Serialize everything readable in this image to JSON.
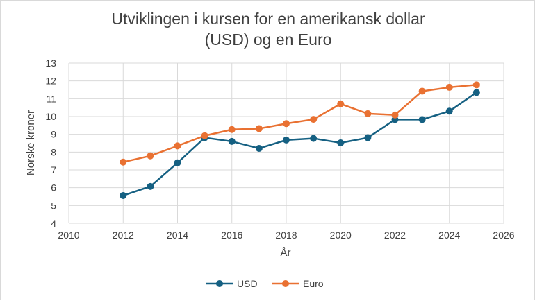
{
  "chart_data": {
    "type": "line",
    "title_lines": [
      "Utviklingen i kursen for en amerikansk dollar",
      "(USD) og en Euro"
    ],
    "xlabel": "År",
    "ylabel": "Norske kroner",
    "xlim": [
      2010,
      2026
    ],
    "ylim": [
      4,
      13
    ],
    "xticks": [
      2010,
      2012,
      2014,
      2016,
      2018,
      2020,
      2022,
      2024,
      2026
    ],
    "yticks": [
      4,
      5,
      6,
      7,
      8,
      9,
      10,
      11,
      12,
      13
    ],
    "grid": true,
    "legend_position": "bottom",
    "x": [
      2012,
      2013,
      2014,
      2015,
      2016,
      2017,
      2018,
      2019,
      2020,
      2021,
      2022,
      2023,
      2024,
      2025
    ],
    "series": [
      {
        "name": "USD",
        "color": "#156082",
        "values": [
          5.56,
          6.07,
          7.4,
          8.81,
          8.6,
          8.21,
          8.68,
          8.77,
          8.52,
          8.81,
          9.83,
          9.83,
          10.3,
          11.35
        ]
      },
      {
        "name": "Euro",
        "color": "#E97132",
        "values": [
          7.44,
          7.79,
          8.35,
          8.92,
          9.27,
          9.32,
          9.6,
          9.84,
          10.71,
          10.16,
          10.09,
          11.42,
          11.64,
          11.78
        ]
      }
    ]
  }
}
